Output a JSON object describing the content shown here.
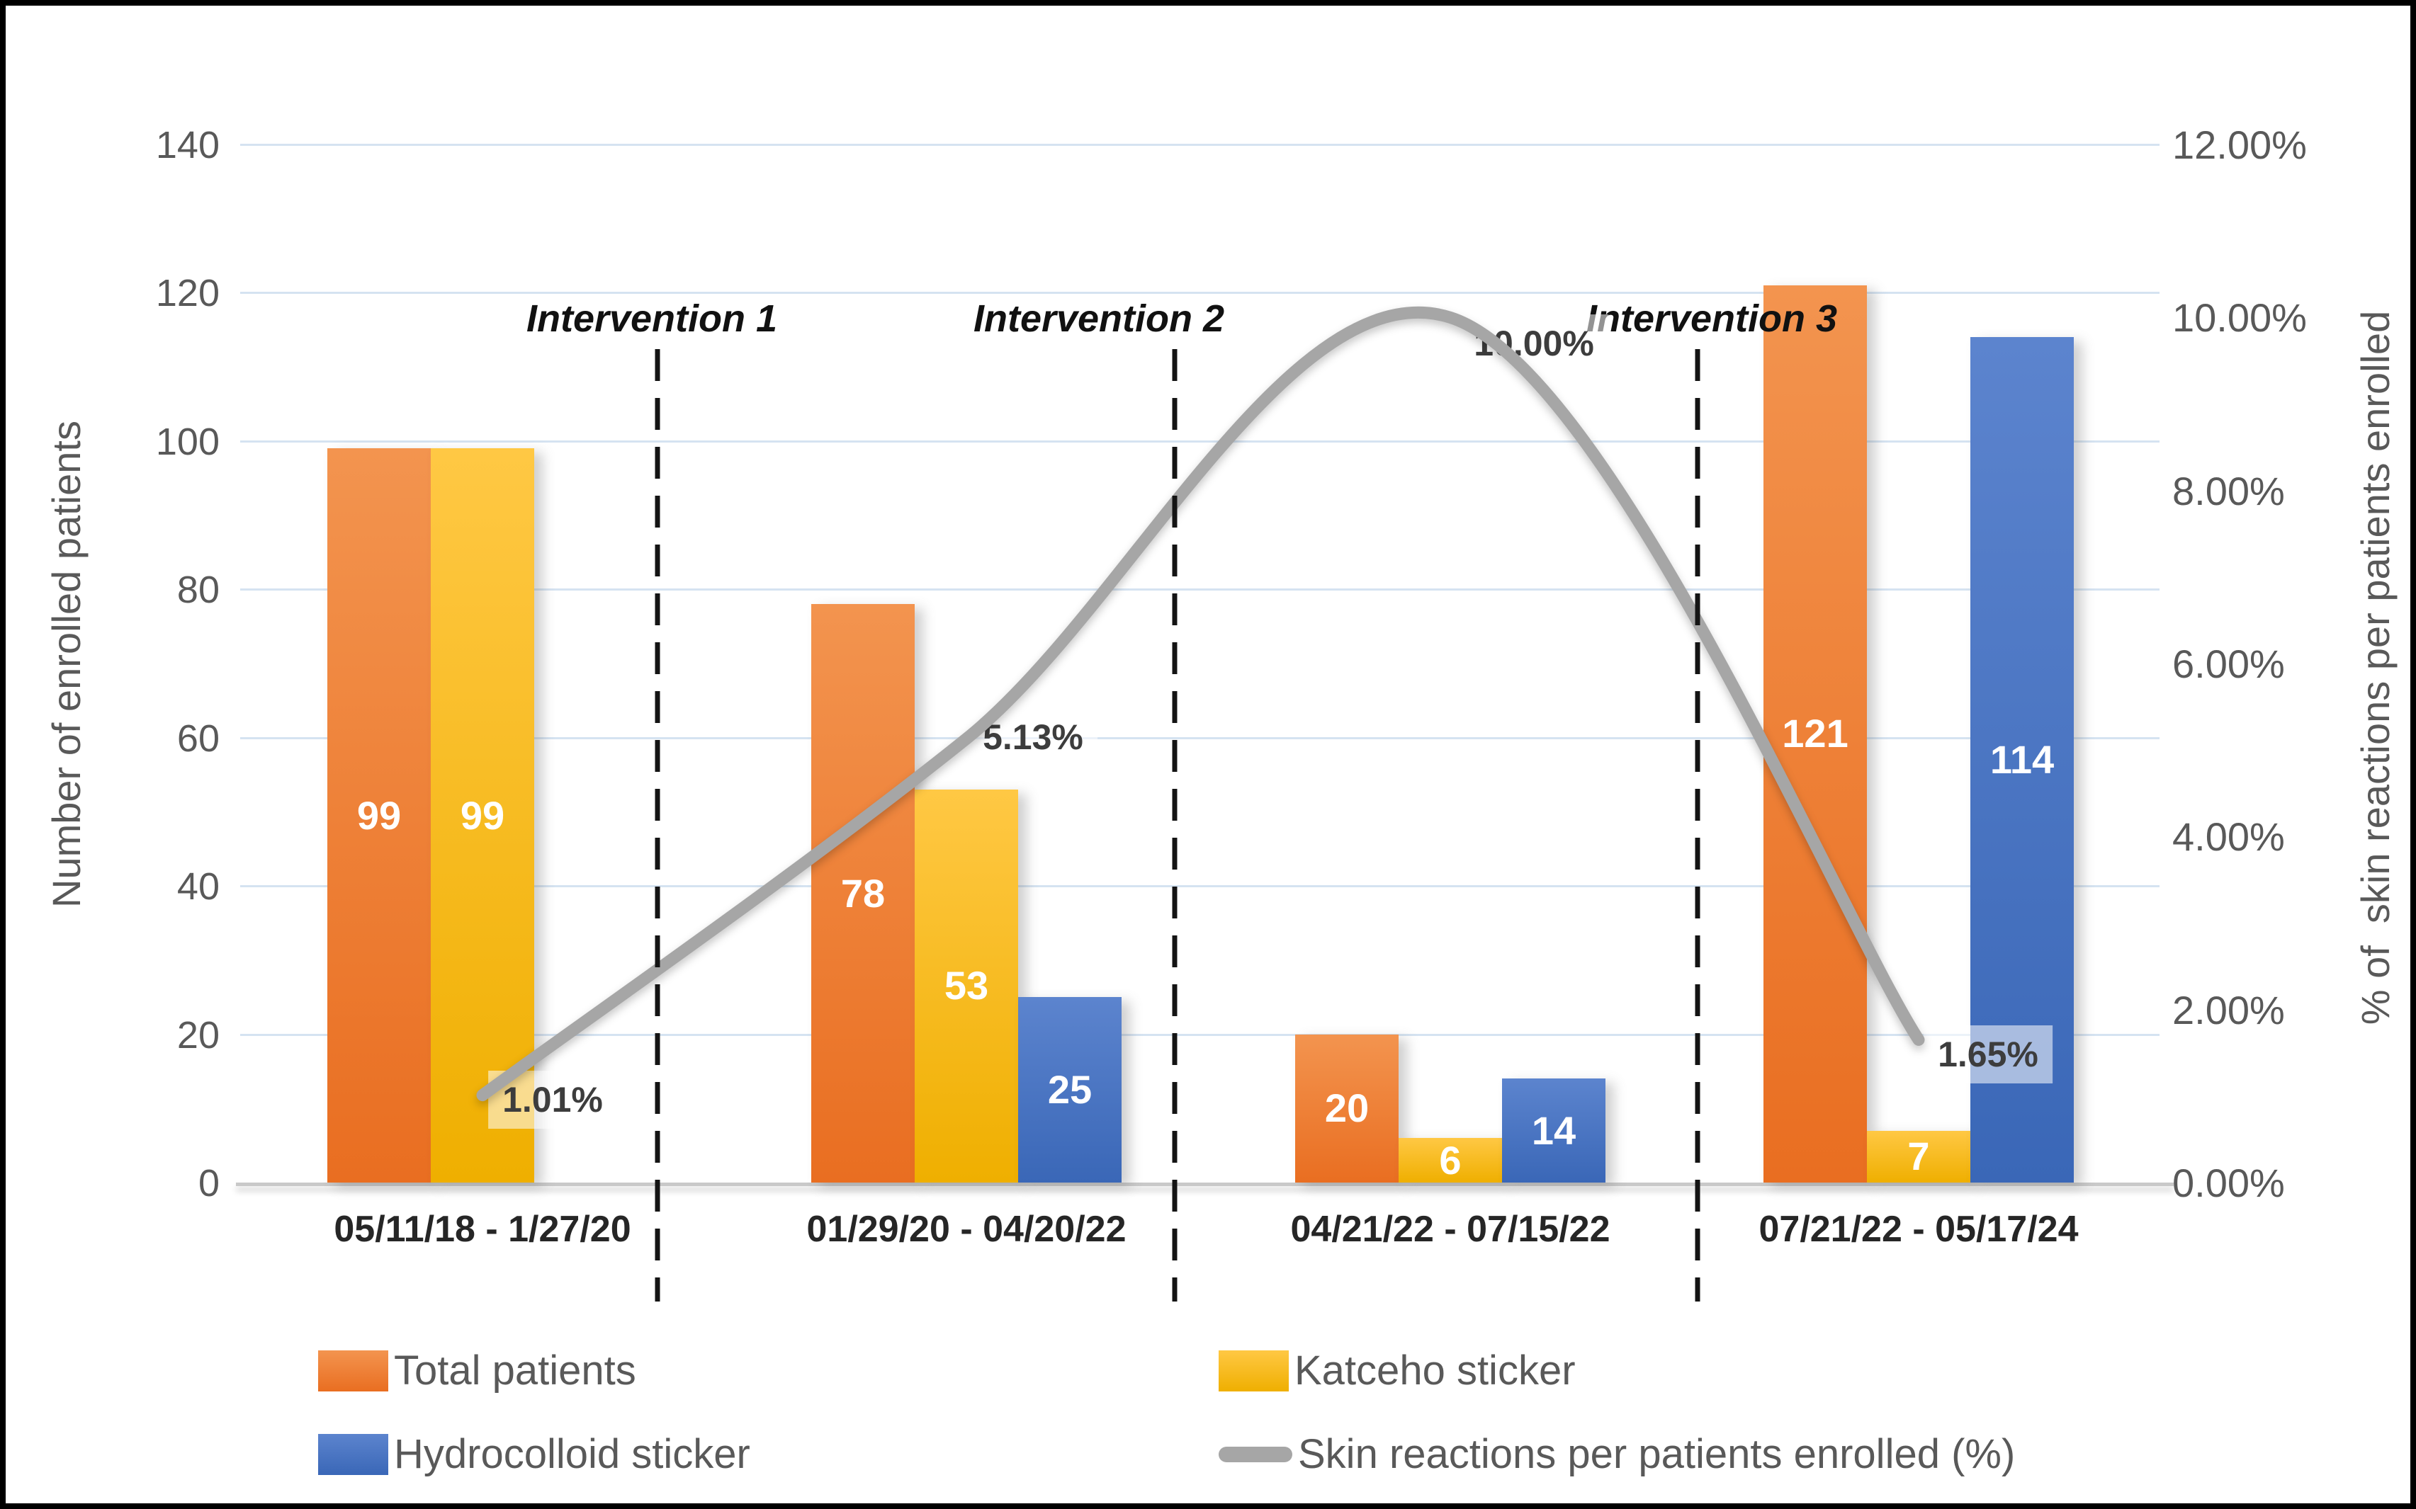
{
  "chart_data": {
    "type": "combo-bar-line",
    "categories": [
      "05/11/18 - 1/27/20",
      "01/29/20 - 04/20/22",
      "04/21/22 - 07/15/22",
      "07/21/22 - 05/17/24"
    ],
    "bar_series": [
      {
        "name": "Total patients",
        "color": "#ED7D31",
        "values": [
          99,
          78,
          20,
          121
        ]
      },
      {
        "name": "Katceho sticker",
        "color": "#FFC000",
        "values": [
          99,
          53,
          6,
          7
        ]
      },
      {
        "name": "Hydrocolloid sticker",
        "color": "#4472C4",
        "values": [
          null,
          25,
          14,
          114
        ]
      }
    ],
    "line_series": {
      "name": "Skin reactions per patients enrolled (%)",
      "color": "#A6A6A6",
      "values_percent": [
        1.01,
        5.13,
        10.0,
        1.65
      ],
      "point_labels": [
        "1.01%",
        "5.13%",
        "10.00%",
        "1.65%"
      ]
    },
    "left_axis": {
      "title": "Number of enrolled patients",
      "min": 0,
      "max": 140,
      "ticks": [
        "0",
        "20",
        "40",
        "60",
        "80",
        "100",
        "120",
        "140"
      ]
    },
    "right_axis": {
      "title": "% of  skin reactions per patients enrolled",
      "ticks": [
        "0.00%",
        "2.00%",
        "4.00%",
        "6.00%",
        "8.00%",
        "10.00%",
        "12.00%"
      ]
    },
    "annotations": [
      "Intervention 1",
      "Intervention 2",
      "Intervention 3"
    ],
    "grid": true,
    "legend_position": "bottom",
    "colors": {
      "gridline": "#D5E3F1",
      "axis_text": "#595959",
      "dashed_line": "#141414"
    }
  }
}
